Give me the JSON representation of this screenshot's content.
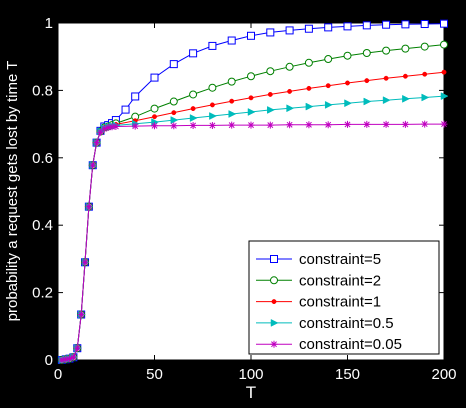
{
  "colors": {
    "background": "#000000",
    "plot_bg": "#ffffff",
    "axis_text": "#ffffff",
    "frame": "#000000"
  },
  "chart_data": {
    "type": "line",
    "title": "",
    "xlabel": "T",
    "ylabel": "probability a request gets lost by time T",
    "xlim": [
      0,
      200
    ],
    "ylim": [
      0,
      1
    ],
    "grid": false,
    "legend_position": "lower-right",
    "x_ticks": [
      0,
      50,
      100,
      150,
      200
    ],
    "y_ticks": [
      0,
      0.2,
      0.4,
      0.6,
      0.8,
      1
    ],
    "x_tick_labels": [
      "0",
      "50",
      "100",
      "150",
      "200"
    ],
    "y_tick_labels": [
      "0",
      "0.2",
      "0.4",
      "0.6",
      "0.8",
      "1"
    ],
    "series": [
      {
        "name": "constraint=5",
        "color": "#0000ff",
        "marker": "square",
        "x": [
          2,
          4,
          6,
          8,
          10,
          12,
          14,
          16,
          18,
          20,
          22,
          24,
          26,
          28,
          30,
          35,
          40,
          50,
          60,
          70,
          80,
          90,
          100,
          110,
          120,
          130,
          140,
          150,
          160,
          170,
          180,
          190,
          200
        ],
        "y": [
          0.0,
          0.002,
          0.004,
          0.008,
          0.035,
          0.135,
          0.29,
          0.455,
          0.578,
          0.645,
          0.68,
          0.693,
          0.697,
          0.703,
          0.712,
          0.743,
          0.782,
          0.838,
          0.878,
          0.91,
          0.932,
          0.948,
          0.962,
          0.972,
          0.978,
          0.983,
          0.987,
          0.99,
          0.993,
          0.995,
          0.996,
          0.997,
          0.998
        ]
      },
      {
        "name": "constraint=2",
        "color": "#008000",
        "marker": "circle",
        "x": [
          2,
          4,
          6,
          8,
          10,
          12,
          14,
          16,
          18,
          20,
          22,
          24,
          26,
          28,
          30,
          40,
          50,
          60,
          70,
          80,
          90,
          100,
          110,
          120,
          130,
          140,
          150,
          160,
          170,
          180,
          190,
          200
        ],
        "y": [
          0.0,
          0.002,
          0.004,
          0.008,
          0.035,
          0.135,
          0.29,
          0.455,
          0.578,
          0.645,
          0.678,
          0.69,
          0.693,
          0.697,
          0.702,
          0.722,
          0.746,
          0.767,
          0.788,
          0.808,
          0.826,
          0.842,
          0.857,
          0.87,
          0.882,
          0.893,
          0.903,
          0.911,
          0.918,
          0.924,
          0.93,
          0.936
        ]
      },
      {
        "name": "constraint=1",
        "color": "#ff0000",
        "marker": "dot",
        "x": [
          2,
          4,
          6,
          8,
          10,
          12,
          14,
          16,
          18,
          20,
          22,
          24,
          26,
          28,
          30,
          40,
          50,
          60,
          70,
          80,
          90,
          100,
          110,
          120,
          130,
          140,
          150,
          160,
          170,
          180,
          190,
          200
        ],
        "y": [
          0.0,
          0.002,
          0.004,
          0.008,
          0.035,
          0.135,
          0.29,
          0.455,
          0.578,
          0.645,
          0.678,
          0.69,
          0.693,
          0.695,
          0.699,
          0.71,
          0.722,
          0.734,
          0.746,
          0.757,
          0.768,
          0.778,
          0.788,
          0.797,
          0.806,
          0.814,
          0.822,
          0.829,
          0.836,
          0.842,
          0.848,
          0.854
        ]
      },
      {
        "name": "constraint=0.5",
        "color": "#00bcbc",
        "marker": "triangle-right",
        "x": [
          2,
          4,
          6,
          8,
          10,
          12,
          14,
          16,
          18,
          20,
          22,
          24,
          26,
          28,
          30,
          40,
          50,
          60,
          70,
          80,
          90,
          100,
          110,
          120,
          130,
          140,
          150,
          160,
          170,
          180,
          190,
          200
        ],
        "y": [
          0.0,
          0.002,
          0.004,
          0.008,
          0.035,
          0.135,
          0.29,
          0.455,
          0.578,
          0.645,
          0.678,
          0.688,
          0.692,
          0.694,
          0.696,
          0.701,
          0.706,
          0.712,
          0.718,
          0.724,
          0.73,
          0.736,
          0.742,
          0.747,
          0.752,
          0.757,
          0.762,
          0.767,
          0.771,
          0.775,
          0.779,
          0.783
        ]
      },
      {
        "name": "constraint=0.05",
        "color": "#c000c0",
        "marker": "star",
        "x": [
          2,
          4,
          6,
          8,
          10,
          12,
          14,
          16,
          18,
          20,
          22,
          24,
          26,
          28,
          30,
          40,
          50,
          60,
          70,
          80,
          90,
          100,
          110,
          120,
          130,
          140,
          150,
          160,
          170,
          180,
          190,
          200
        ],
        "y": [
          0.0,
          0.002,
          0.004,
          0.008,
          0.035,
          0.135,
          0.29,
          0.455,
          0.578,
          0.645,
          0.676,
          0.686,
          0.69,
          0.692,
          0.693,
          0.694,
          0.695,
          0.695,
          0.696,
          0.696,
          0.697,
          0.697,
          0.697,
          0.698,
          0.698,
          0.698,
          0.699,
          0.699,
          0.699,
          0.699,
          0.7,
          0.7
        ]
      }
    ]
  }
}
